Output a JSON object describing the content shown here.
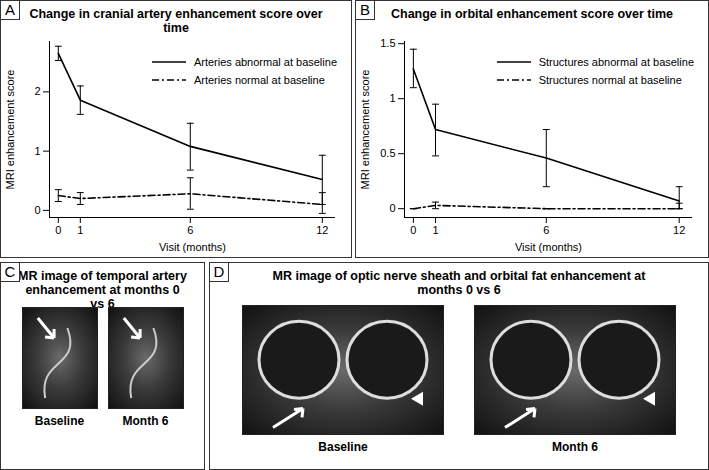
{
  "chart_data": [
    {
      "panel": "A",
      "type": "line",
      "title": "Change in cranial artery enhancement score over time",
      "x_label": "Visit (months)",
      "y_label": "MRI enhancement score",
      "x": [
        0,
        1,
        6,
        12
      ],
      "series": [
        {
          "name": "Arteries abnormal at baseline",
          "color": "#000000",
          "line_style": "solid",
          "values": [
            2.65,
            1.86,
            1.08,
            0.52
          ],
          "error_low": [
            2.53,
            1.62,
            0.68,
            0.1
          ],
          "error_high": [
            2.77,
            2.1,
            1.47,
            0.93
          ]
        },
        {
          "name": "Arteries normal at baseline",
          "color": "#000000",
          "line_style": "dashdot",
          "values": [
            0.25,
            0.2,
            0.28,
            0.1
          ],
          "error_low": [
            0.15,
            0.1,
            0.02,
            -0.05
          ],
          "error_high": [
            0.35,
            0.3,
            0.55,
            0.3
          ]
        }
      ],
      "xlim": [
        -0.4,
        12.6
      ],
      "xticks": [
        0,
        1,
        6,
        12
      ],
      "ylim": [
        -0.12,
        2.85
      ],
      "yticks": [
        0,
        1,
        2
      ],
      "grid": false,
      "legend": "top-right"
    },
    {
      "panel": "B",
      "type": "line",
      "title": "Change in orbital enhancement score over time",
      "x_label": "Visit (months)",
      "y_label": "MRI enhancement score",
      "x": [
        0,
        1,
        6,
        12
      ],
      "series": [
        {
          "name": "Structures abnormal at baseline",
          "color": "#000000",
          "line_style": "solid",
          "values": [
            1.27,
            0.72,
            0.46,
            0.07
          ],
          "error_low": [
            1.1,
            0.48,
            0.2,
            0
          ],
          "error_high": [
            1.45,
            0.95,
            0.72,
            0.2
          ]
        },
        {
          "name": "Structures normal at baseline",
          "color": "#000000",
          "line_style": "dashdot",
          "values": [
            0,
            0.03,
            0,
            0
          ],
          "error_low": [
            0,
            0,
            0,
            0
          ],
          "error_high": [
            0,
            0.06,
            0,
            0.05
          ]
        }
      ],
      "xlim": [
        -0.4,
        12.6
      ],
      "xticks": [
        0,
        1,
        6,
        12
      ],
      "ylim": [
        -0.08,
        1.52
      ],
      "yticks": [
        0,
        0.5,
        1,
        1.5
      ],
      "grid": false,
      "legend": "top-right"
    }
  ],
  "panels": [
    {
      "letter": "C",
      "title": "MR image of temporal artery enhancement at months 0 vs 6",
      "images": [
        "Baseline",
        "Month 6"
      ]
    },
    {
      "letter": "D",
      "title": "MR image of optic nerve sheath and orbital fat enhancement at months 0 vs 6",
      "images": [
        "Baseline",
        "Month 6"
      ]
    }
  ]
}
